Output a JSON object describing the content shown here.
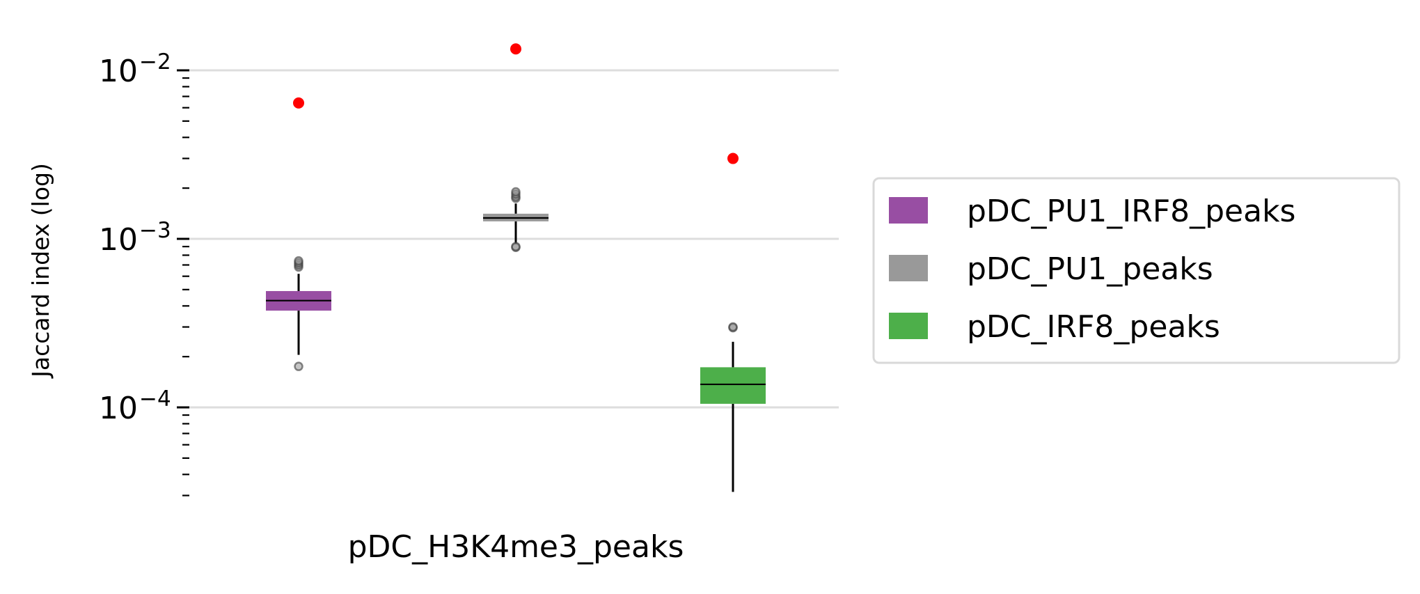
{
  "chart_data": {
    "type": "box",
    "title": "",
    "xlabel": "",
    "ylabel": "Jaccard index (log)",
    "yscale": "log",
    "ylim": [
      2.8e-05,
      0.0145
    ],
    "category": "pDC_H3K4me3_peaks",
    "y_ticks": [
      {
        "base": "10",
        "exp": "−2",
        "value": 0.01
      },
      {
        "base": "10",
        "exp": "−3",
        "value": 0.001
      },
      {
        "base": "10",
        "exp": "−4",
        "value": 0.0001
      }
    ],
    "grid": "horizontal",
    "legend_position": "right",
    "series": [
      {
        "name": "pDC_PU1_IRF8_peaks",
        "color": "#984ea3",
        "q1": 0.000375,
        "median": 0.00043,
        "q3": 0.00049,
        "whisker_low": 0.000205,
        "whisker_high": 0.00062,
        "outliers": [
          0.000175,
          0.00068,
          0.0007,
          0.00072,
          0.00074
        ],
        "observed": 0.0064
      },
      {
        "name": "pDC_PU1_peaks",
        "color": "#999999",
        "q1": 0.00127,
        "median": 0.00133,
        "q3": 0.00141,
        "whisker_low": 0.00093,
        "whisker_high": 0.00162,
        "outliers": [
          0.00089,
          0.0009,
          0.00174,
          0.00178,
          0.00184,
          0.0019
        ],
        "observed": 0.0134
      },
      {
        "name": "pDC_IRF8_peaks",
        "color": "#4daf4a",
        "q1": 0.000105,
        "median": 0.000137,
        "q3": 0.000173,
        "whisker_low": 3.15e-05,
        "whisker_high": 0.000245,
        "outliers": [
          0.000297,
          0.0003
        ],
        "observed": 0.003
      }
    ]
  }
}
